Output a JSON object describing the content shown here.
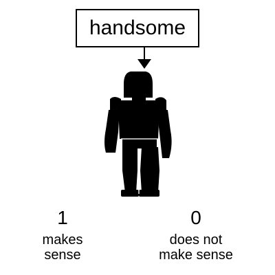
{
  "word_box": {
    "text": "handsome"
  },
  "options": [
    {
      "score": "1",
      "line1": "makes",
      "line2": "sense"
    },
    {
      "score": "0",
      "line1": "does not",
      "line2": "make sense"
    }
  ],
  "colors": {
    "background": "#ffffff",
    "ink": "#000000"
  },
  "icons": {
    "pointer": "down-arrow-icon",
    "figure": "robot-silhouette-icon"
  }
}
